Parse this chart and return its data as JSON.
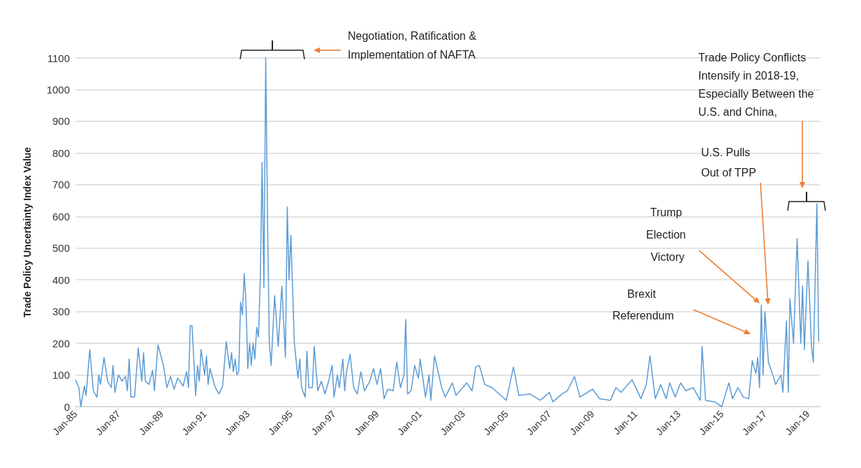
{
  "chart_data": {
    "type": "line",
    "ylabel": "Trade Policy Uncertainty Index Value",
    "color": "#5b9bd5",
    "marker": "none",
    "grid": "y",
    "xlim": [
      "1985-01",
      "2019-08"
    ],
    "xticks": [
      {
        "value": "1985-01",
        "label": "Jan-85"
      },
      {
        "value": "1987-01",
        "label": "Jan-87"
      },
      {
        "value": "1989-01",
        "label": "Jan-89"
      },
      {
        "value": "1991-01",
        "label": "Jan-91"
      },
      {
        "value": "1993-01",
        "label": "Jan-93"
      },
      {
        "value": "1995-01",
        "label": "Jan-95"
      },
      {
        "value": "1997-01",
        "label": "Jan-97"
      },
      {
        "value": "1999-01",
        "label": "Jan-99"
      },
      {
        "value": "2001-01",
        "label": "Jan-01"
      },
      {
        "value": "2003-01",
        "label": "Jan-03"
      },
      {
        "value": "2005-01",
        "label": "Jan-05"
      },
      {
        "value": "2007-01",
        "label": "Jan-07"
      },
      {
        "value": "2009-01",
        "label": "Jan-09"
      },
      {
        "value": "2011-01",
        "label": "Jan-11"
      },
      {
        "value": "2013-01",
        "label": "Jan-13"
      },
      {
        "value": "2015-01",
        "label": "Jan-15"
      },
      {
        "value": "2017-01",
        "label": "Jan-17"
      },
      {
        "value": "2019-01",
        "label": "Jan-19"
      }
    ],
    "ylim": [
      0,
      1100
    ],
    "yticks": [
      0,
      100,
      200,
      300,
      400,
      500,
      600,
      700,
      800,
      900,
      1000,
      1100
    ],
    "x": [
      "1985-01",
      "1985-03",
      "1985-04",
      "1985-06",
      "1985-07",
      "1985-09",
      "1985-11",
      "1986-01",
      "1986-02",
      "1986-03",
      "1986-05",
      "1986-07",
      "1986-09",
      "1986-10",
      "1986-11",
      "1987-01",
      "1987-03",
      "1987-05",
      "1987-06",
      "1987-07",
      "1987-08",
      "1987-10",
      "1987-12",
      "1988-02",
      "1988-03",
      "1988-04",
      "1988-06",
      "1988-08",
      "1988-09",
      "1988-11",
      "1989-02",
      "1989-04",
      "1989-06",
      "1989-08",
      "1989-10",
      "1990-01",
      "1990-03",
      "1990-04",
      "1990-05",
      "1990-06",
      "1990-08",
      "1990-09",
      "1990-10",
      "1990-11",
      "1991-01",
      "1991-02",
      "1991-03",
      "1991-04",
      "1991-05",
      "1991-07",
      "1991-09",
      "1991-11",
      "1992-01",
      "1992-03",
      "1992-04",
      "1992-05",
      "1992-06",
      "1992-07",
      "1992-08",
      "1992-09",
      "1992-10",
      "1992-11",
      "1992-12",
      "1993-01",
      "1993-02",
      "1993-03",
      "1993-04",
      "1993-05",
      "1993-06",
      "1993-07",
      "1993-08",
      "1993-09",
      "1993-10",
      "1993-11",
      "1993-12",
      "1994-01",
      "1994-02",
      "1994-04",
      "1994-06",
      "1994-08",
      "1994-10",
      "1994-11",
      "1994-12",
      "1995-01",
      "1995-03",
      "1995-05",
      "1995-06",
      "1995-07",
      "1995-09",
      "1995-10",
      "1995-11",
      "1996-01",
      "1996-02",
      "1996-04",
      "1996-06",
      "1996-08",
      "1996-10",
      "1996-12",
      "1997-01",
      "1997-03",
      "1997-04",
      "1997-06",
      "1997-07",
      "1997-08",
      "1997-10",
      "1997-12",
      "1998-02",
      "1998-04",
      "1998-06",
      "1998-09",
      "1998-11",
      "1999-01",
      "1999-03",
      "1999-05",
      "1999-07",
      "1999-10",
      "1999-12",
      "2000-02",
      "2000-04",
      "2000-05",
      "2000-06",
      "2000-08",
      "2000-10",
      "2000-12",
      "2001-01",
      "2001-04",
      "2001-06",
      "2001-07",
      "2001-09",
      "2002-01",
      "2002-03",
      "2002-07",
      "2002-09",
      "2003-03",
      "2003-06",
      "2003-08",
      "2003-10",
      "2004-01",
      "2004-05",
      "2004-08",
      "2005-01",
      "2005-05",
      "2005-08",
      "2006-02",
      "2006-08",
      "2007-01",
      "2007-03",
      "2007-08",
      "2007-11",
      "2008-03",
      "2008-06",
      "2009-01",
      "2009-05",
      "2009-11",
      "2010-02",
      "2010-05",
      "2010-11",
      "2011-04",
      "2011-07",
      "2011-09",
      "2011-12",
      "2012-03",
      "2012-06",
      "2012-08",
      "2012-11",
      "2013-02",
      "2013-05",
      "2013-09",
      "2014-01",
      "2014-02",
      "2014-04",
      "2014-09",
      "2015-01",
      "2015-05",
      "2015-07",
      "2015-10",
      "2016-01",
      "2016-04",
      "2016-06",
      "2016-08",
      "2016-09",
      "2016-10",
      "2016-11",
      "2016-12",
      "2017-01",
      "2017-03",
      "2017-06",
      "2017-07",
      "2017-10",
      "2017-11",
      "2018-01",
      "2018-02",
      "2018-03",
      "2018-05",
      "2018-07",
      "2018-09",
      "2018-10",
      "2018-11",
      "2019-01",
      "2019-03",
      "2019-04",
      "2019-06",
      "2019-07"
    ],
    "values": [
      85,
      60,
      0,
      65,
      35,
      180,
      50,
      30,
      100,
      70,
      155,
      80,
      60,
      130,
      45,
      100,
      80,
      95,
      50,
      150,
      30,
      30,
      185,
      80,
      170,
      80,
      70,
      115,
      50,
      195,
      130,
      60,
      95,
      55,
      90,
      65,
      110,
      60,
      255,
      255,
      35,
      130,
      80,
      180,
      100,
      160,
      70,
      120,
      100,
      60,
      40,
      65,
      205,
      120,
      170,
      110,
      150,
      100,
      110,
      330,
      290,
      420,
      330,
      120,
      200,
      130,
      200,
      150,
      250,
      220,
      400,
      770,
      375,
      1100,
      600,
      200,
      130,
      350,
      190,
      380,
      155,
      630,
      400,
      540,
      200,
      90,
      150,
      60,
      30,
      175,
      60,
      60,
      190,
      50,
      80,
      40,
      80,
      130,
      30,
      100,
      60,
      150,
      50,
      110,
      165,
      60,
      40,
      110,
      50,
      80,
      120,
      70,
      120,
      25,
      55,
      50,
      140,
      60,
      100,
      275,
      40,
      50,
      130,
      90,
      150,
      30,
      100,
      20,
      160,
      60,
      30,
      75,
      35,
      75,
      50,
      125,
      130,
      70,
      60,
      45,
      20,
      125,
      35,
      40,
      20,
      45,
      15,
      40,
      50,
      95,
      30,
      55,
      25,
      20,
      60,
      45,
      85,
      25,
      70,
      160,
      25,
      70,
      25,
      75,
      30,
      75,
      50,
      60,
      20,
      190,
      20,
      15,
      0,
      75,
      25,
      60,
      30,
      25,
      145,
      105,
      155,
      60,
      320,
      100,
      300,
      140,
      90,
      70,
      100,
      45,
      270,
      45,
      340,
      200,
      530,
      200,
      380,
      180,
      460,
      190,
      140,
      640,
      205
    ],
    "annotations": [
      "Negotiation, Ratification & Implementation of NAFTA",
      "Trade Policy Conflicts Intensify in 2018-19, Especially Between the U.S. and China,",
      "U.S. Pulls Out of TPP",
      "Trump Election Victory",
      "Brexit Referendum"
    ]
  }
}
